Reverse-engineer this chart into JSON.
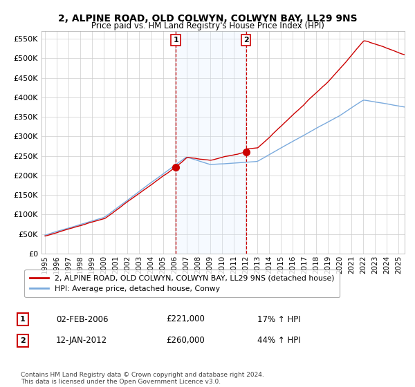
{
  "title": "2, ALPINE ROAD, OLD COLWYN, COLWYN BAY, LL29 9NS",
  "subtitle": "Price paid vs. HM Land Registry's House Price Index (HPI)",
  "hpi_color": "#7aaadd",
  "price_color": "#cc0000",
  "marker_color": "#cc0000",
  "vline_color": "#cc0000",
  "shade_color": "#ddeeff",
  "ylim": [
    0,
    570000
  ],
  "yticks": [
    0,
    50000,
    100000,
    150000,
    200000,
    250000,
    300000,
    350000,
    400000,
    450000,
    500000,
    550000
  ],
  "x_start_year": 1995,
  "x_end_year": 2025,
  "sale1_year": 2006.09,
  "sale1_price": 221000,
  "sale1_label": "1",
  "sale1_date": "02-FEB-2006",
  "sale1_hpi_pct": "17%",
  "sale2_year": 2012.04,
  "sale2_price": 260000,
  "sale2_label": "2",
  "sale2_date": "12-JAN-2012",
  "sale2_hpi_pct": "44%",
  "legend_line1": "2, ALPINE ROAD, OLD COLWYN, COLWYN BAY, LL29 9NS (detached house)",
  "legend_line2": "HPI: Average price, detached house, Conwy",
  "footnote": "Contains HM Land Registry data © Crown copyright and database right 2024.\nThis data is licensed under the Open Government Licence v3.0.",
  "background_color": "#ffffff",
  "grid_color": "#cccccc"
}
